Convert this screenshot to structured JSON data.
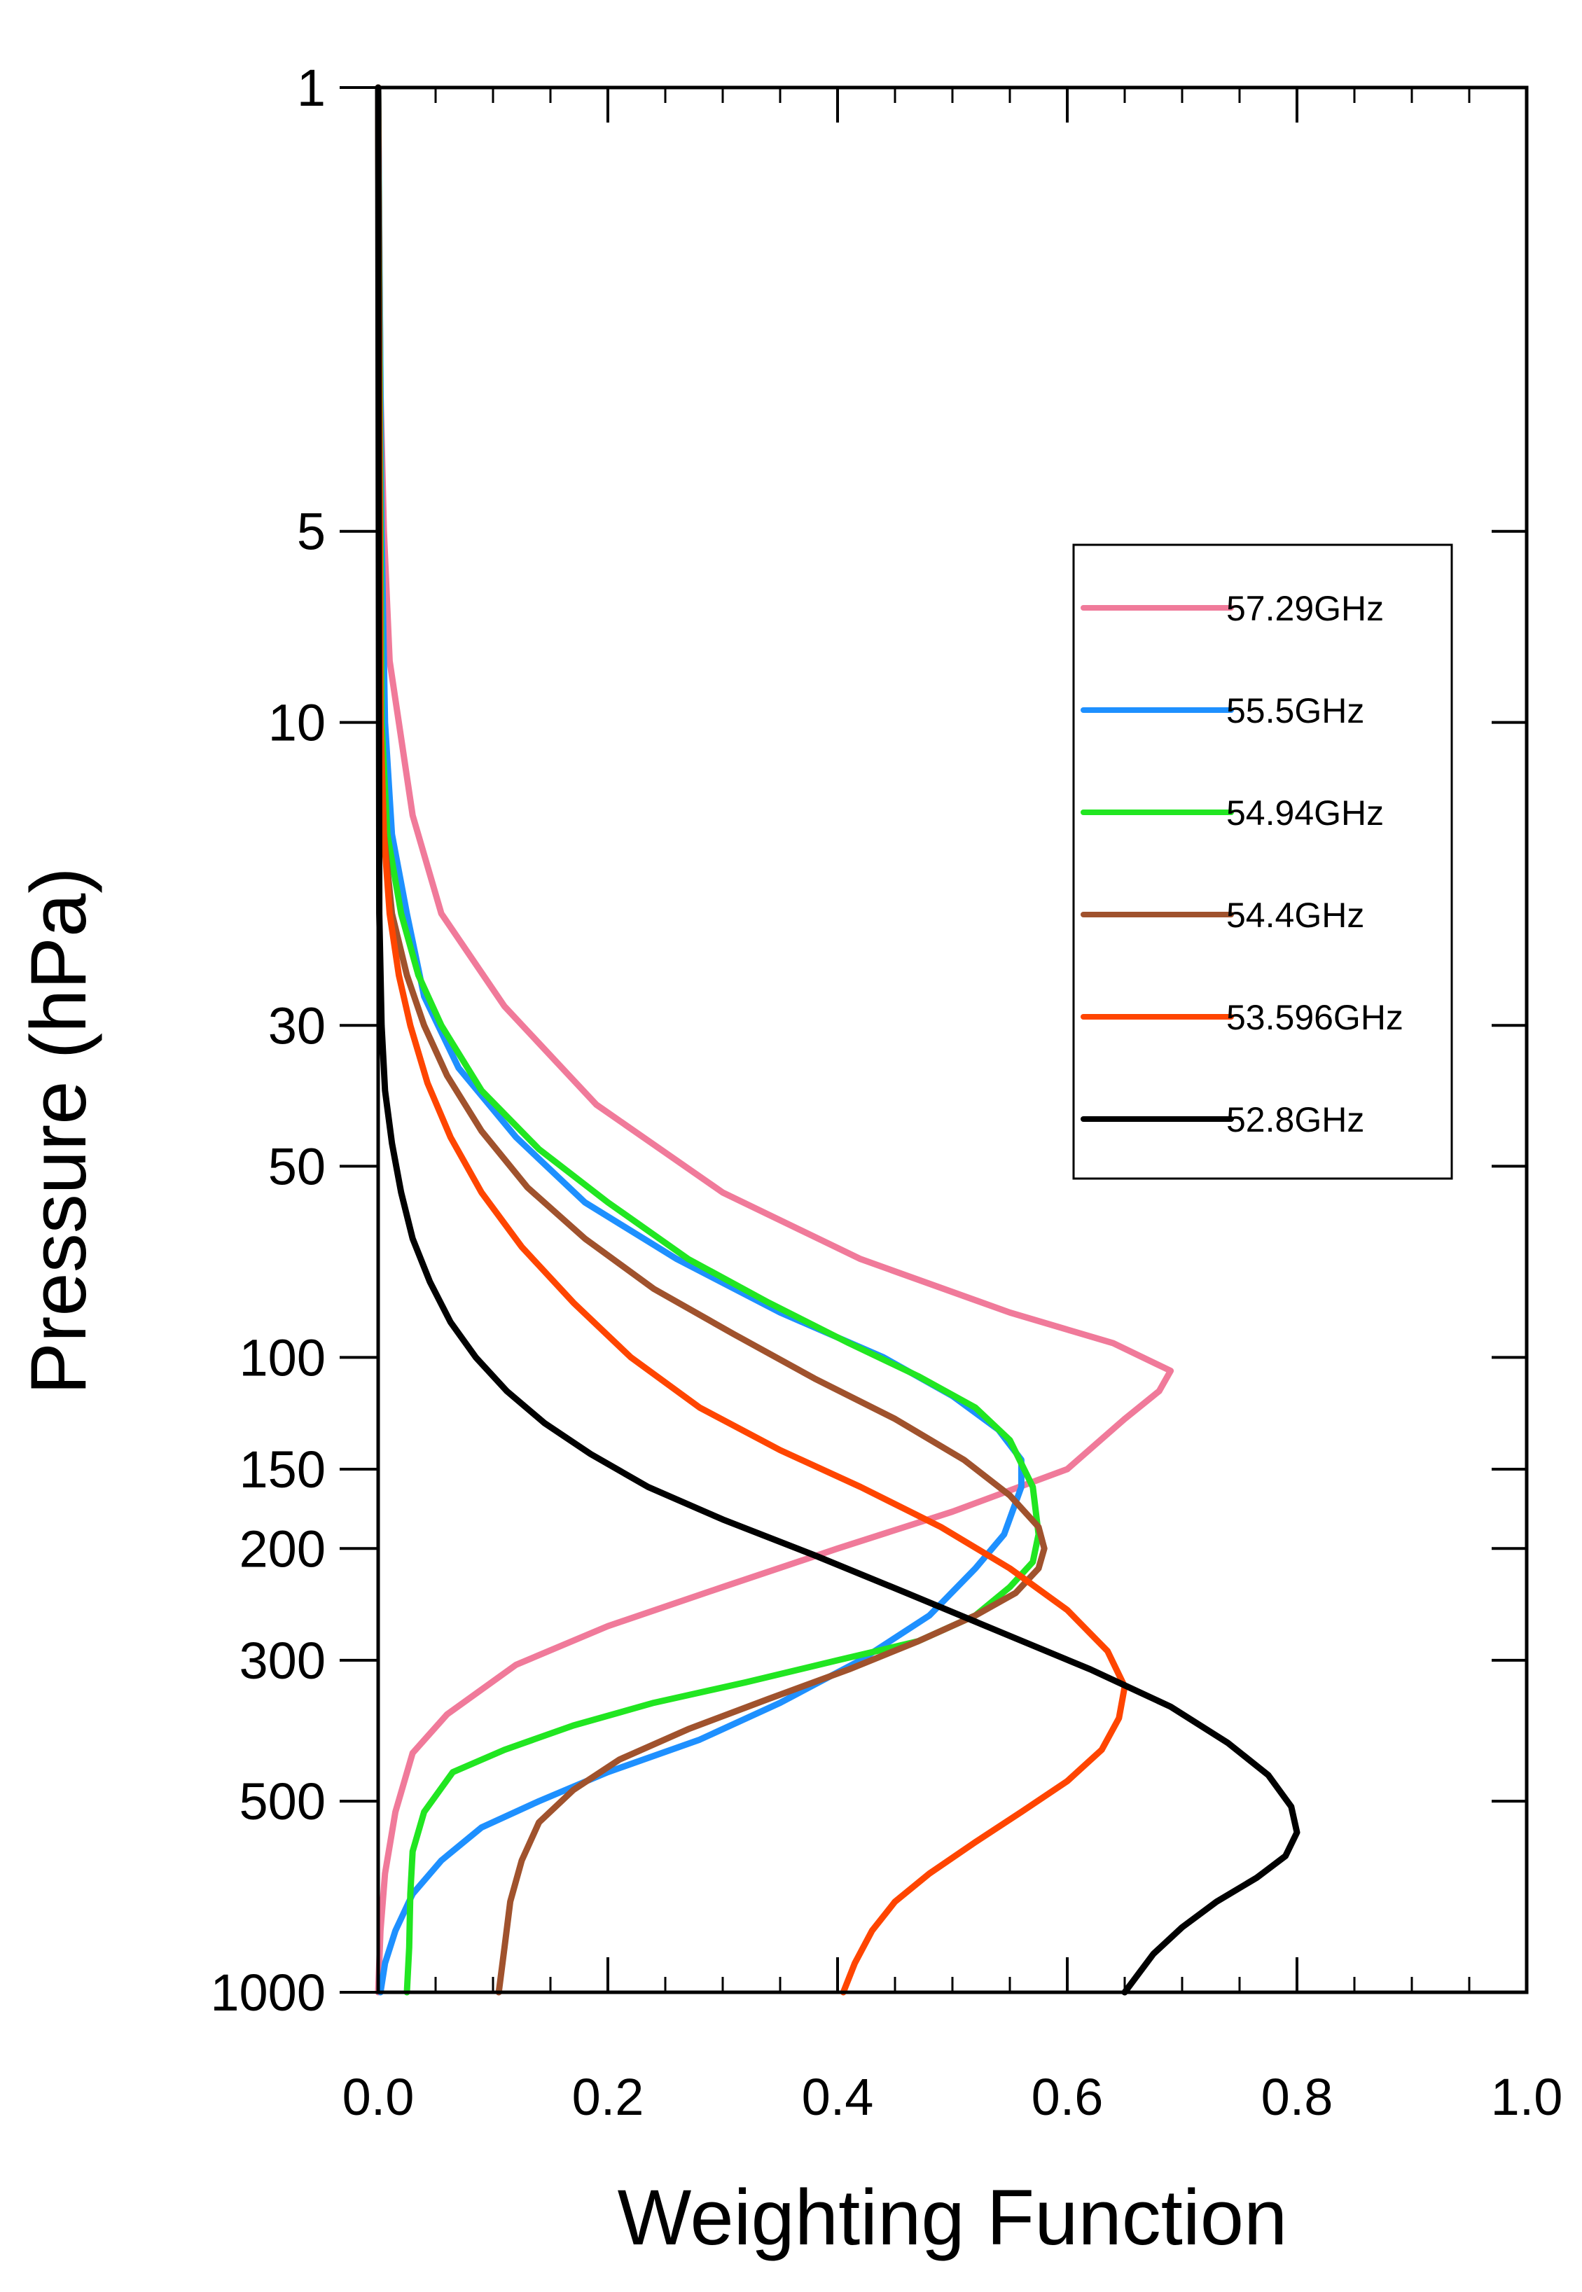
{
  "chart_data": {
    "type": "line",
    "title": "",
    "xlabel": "Weighting Function",
    "ylabel": "Pressure (hPa)",
    "xlim": [
      0.0,
      1.0
    ],
    "ylim": [
      1,
      1000
    ],
    "yscale": "log",
    "y_inverted": true,
    "grid": false,
    "legend_position": "right",
    "x_ticks": [
      {
        "value": 0.0,
        "label": "0.0"
      },
      {
        "value": 0.2,
        "label": "0.2"
      },
      {
        "value": 0.4,
        "label": "0.4"
      },
      {
        "value": 0.6,
        "label": "0.6"
      },
      {
        "value": 0.8,
        "label": "0.8"
      },
      {
        "value": 1.0,
        "label": "1.0"
      }
    ],
    "y_ticks": [
      {
        "value": 1,
        "label": "1"
      },
      {
        "value": 5,
        "label": "5"
      },
      {
        "value": 10,
        "label": "10"
      },
      {
        "value": 30,
        "label": "30"
      },
      {
        "value": 50,
        "label": "50"
      },
      {
        "value": 100,
        "label": "100"
      },
      {
        "value": 150,
        "label": "150"
      },
      {
        "value": 200,
        "label": "200"
      },
      {
        "value": 300,
        "label": "300"
      },
      {
        "value": 500,
        "label": "500"
      },
      {
        "value": 1000,
        "label": "1000"
      }
    ],
    "series": [
      {
        "name": "57.29GHz",
        "color": "#f07a9a",
        "points": [
          [
            0.0,
            1
          ],
          [
            0.002,
            3
          ],
          [
            0.005,
            5
          ],
          [
            0.01,
            8
          ],
          [
            0.018,
            10
          ],
          [
            0.03,
            14
          ],
          [
            0.055,
            20
          ],
          [
            0.11,
            28
          ],
          [
            0.19,
            40
          ],
          [
            0.3,
            55
          ],
          [
            0.42,
            70
          ],
          [
            0.55,
            85
          ],
          [
            0.64,
            95
          ],
          [
            0.69,
            105
          ],
          [
            0.68,
            113
          ],
          [
            0.65,
            125
          ],
          [
            0.6,
            150
          ],
          [
            0.5,
            175
          ],
          [
            0.4,
            200
          ],
          [
            0.3,
            230
          ],
          [
            0.2,
            265
          ],
          [
            0.12,
            305
          ],
          [
            0.06,
            365
          ],
          [
            0.03,
            420
          ],
          [
            0.015,
            520
          ],
          [
            0.006,
            650
          ],
          [
            0.002,
            800
          ],
          [
            0.0,
            1000
          ]
        ]
      },
      {
        "name": "55.5GHz",
        "color": "#1e90ff",
        "points": [
          [
            0.0,
            1
          ],
          [
            0.003,
            5
          ],
          [
            0.006,
            10
          ],
          [
            0.012,
            15
          ],
          [
            0.025,
            20
          ],
          [
            0.04,
            27
          ],
          [
            0.07,
            35
          ],
          [
            0.12,
            45
          ],
          [
            0.18,
            57
          ],
          [
            0.26,
            70
          ],
          [
            0.35,
            85
          ],
          [
            0.44,
            100
          ],
          [
            0.5,
            115
          ],
          [
            0.54,
            130
          ],
          [
            0.56,
            145
          ],
          [
            0.56,
            160
          ],
          [
            0.545,
            190
          ],
          [
            0.52,
            215
          ],
          [
            0.48,
            255
          ],
          [
            0.42,
            300
          ],
          [
            0.35,
            350
          ],
          [
            0.28,
            400
          ],
          [
            0.2,
            450
          ],
          [
            0.14,
            500
          ],
          [
            0.09,
            550
          ],
          [
            0.055,
            620
          ],
          [
            0.03,
            700
          ],
          [
            0.015,
            800
          ],
          [
            0.006,
            900
          ],
          [
            0.002,
            1000
          ]
        ]
      },
      {
        "name": "54.94GHz",
        "color": "#21e621",
        "points": [
          [
            0.0,
            1
          ],
          [
            0.003,
            10
          ],
          [
            0.008,
            15
          ],
          [
            0.02,
            20
          ],
          [
            0.035,
            25
          ],
          [
            0.055,
            30
          ],
          [
            0.09,
            38
          ],
          [
            0.14,
            47
          ],
          [
            0.2,
            57
          ],
          [
            0.27,
            70
          ],
          [
            0.34,
            82
          ],
          [
            0.41,
            95
          ],
          [
            0.47,
            107
          ],
          [
            0.52,
            120
          ],
          [
            0.55,
            135
          ],
          [
            0.57,
            160
          ],
          [
            0.575,
            190
          ],
          [
            0.57,
            210
          ],
          [
            0.55,
            230
          ],
          [
            0.52,
            255
          ],
          [
            0.47,
            280
          ],
          [
            0.4,
            300
          ],
          [
            0.32,
            325
          ],
          [
            0.24,
            350
          ],
          [
            0.17,
            380
          ],
          [
            0.11,
            415
          ],
          [
            0.065,
            450
          ],
          [
            0.04,
            520
          ],
          [
            0.03,
            600
          ],
          [
            0.028,
            700
          ],
          [
            0.027,
            850
          ],
          [
            0.025,
            1000
          ]
        ]
      },
      {
        "name": "54.4GHz",
        "color": "#a0522d",
        "points": [
          [
            0.0,
            1
          ],
          [
            0.002,
            10
          ],
          [
            0.005,
            15
          ],
          [
            0.012,
            20
          ],
          [
            0.025,
            25
          ],
          [
            0.04,
            30
          ],
          [
            0.06,
            36
          ],
          [
            0.09,
            44
          ],
          [
            0.13,
            54
          ],
          [
            0.18,
            65
          ],
          [
            0.24,
            78
          ],
          [
            0.31,
            92
          ],
          [
            0.38,
            108
          ],
          [
            0.45,
            125
          ],
          [
            0.51,
            145
          ],
          [
            0.55,
            165
          ],
          [
            0.575,
            185
          ],
          [
            0.58,
            200
          ],
          [
            0.575,
            215
          ],
          [
            0.555,
            235
          ],
          [
            0.52,
            255
          ],
          [
            0.47,
            280
          ],
          [
            0.41,
            310
          ],
          [
            0.34,
            345
          ],
          [
            0.27,
            385
          ],
          [
            0.21,
            430
          ],
          [
            0.17,
            480
          ],
          [
            0.14,
            540
          ],
          [
            0.125,
            620
          ],
          [
            0.115,
            720
          ],
          [
            0.11,
            850
          ],
          [
            0.105,
            1000
          ]
        ]
      },
      {
        "name": "53.596GHz",
        "color": "#ff4500",
        "points": [
          [
            0.0,
            1
          ],
          [
            0.002,
            10
          ],
          [
            0.005,
            15
          ],
          [
            0.01,
            20
          ],
          [
            0.018,
            25
          ],
          [
            0.028,
            30
          ],
          [
            0.043,
            37
          ],
          [
            0.063,
            45
          ],
          [
            0.09,
            55
          ],
          [
            0.125,
            67
          ],
          [
            0.17,
            82
          ],
          [
            0.22,
            100
          ],
          [
            0.28,
            120
          ],
          [
            0.35,
            140
          ],
          [
            0.42,
            160
          ],
          [
            0.49,
            185
          ],
          [
            0.55,
            215
          ],
          [
            0.6,
            250
          ],
          [
            0.635,
            290
          ],
          [
            0.65,
            330
          ],
          [
            0.645,
            370
          ],
          [
            0.63,
            415
          ],
          [
            0.6,
            465
          ],
          [
            0.56,
            520
          ],
          [
            0.52,
            580
          ],
          [
            0.48,
            650
          ],
          [
            0.45,
            720
          ],
          [
            0.43,
            800
          ],
          [
            0.415,
            900
          ],
          [
            0.405,
            1000
          ]
        ]
      },
      {
        "name": "52.8GHz",
        "color": "#000000",
        "points": [
          [
            0.0,
            1
          ],
          [
            0.001,
            20
          ],
          [
            0.003,
            30
          ],
          [
            0.006,
            38
          ],
          [
            0.012,
            46
          ],
          [
            0.02,
            55
          ],
          [
            0.03,
            65
          ],
          [
            0.045,
            76
          ],
          [
            0.063,
            88
          ],
          [
            0.085,
            100
          ],
          [
            0.112,
            113
          ],
          [
            0.145,
            127
          ],
          [
            0.185,
            142
          ],
          [
            0.235,
            160
          ],
          [
            0.3,
            180
          ],
          [
            0.38,
            205
          ],
          [
            0.46,
            235
          ],
          [
            0.54,
            270
          ],
          [
            0.62,
            310
          ],
          [
            0.69,
            355
          ],
          [
            0.74,
            405
          ],
          [
            0.775,
            455
          ],
          [
            0.795,
            510
          ],
          [
            0.8,
            560
          ],
          [
            0.79,
            610
          ],
          [
            0.765,
            660
          ],
          [
            0.73,
            720
          ],
          [
            0.7,
            790
          ],
          [
            0.675,
            870
          ],
          [
            0.65,
            1000
          ]
        ]
      }
    ]
  }
}
